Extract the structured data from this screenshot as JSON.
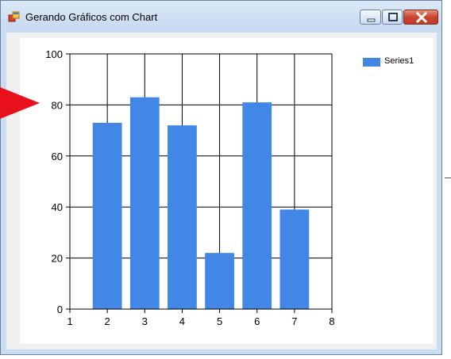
{
  "window": {
    "title": "Gerando Gráficos com Chart",
    "controls": {
      "minimize_icon": "minimize-icon",
      "maximize_icon": "maximize-icon",
      "close_icon": "close-icon"
    }
  },
  "colors": {
    "bar": "#4286e6",
    "close_button": "#c94530",
    "arrow": "#e8101a"
  },
  "chart_data": {
    "type": "bar",
    "x": [
      2,
      3,
      4,
      5,
      6,
      7
    ],
    "series": [
      {
        "name": "Series1",
        "values": [
          73,
          83,
          72,
          22,
          81,
          39
        ]
      }
    ],
    "xlim": [
      1,
      8
    ],
    "ylim": [
      0,
      100
    ],
    "xticks": [
      "1",
      "2",
      "3",
      "4",
      "5",
      "6",
      "7",
      "8"
    ],
    "yticks": [
      "0",
      "20",
      "40",
      "60",
      "80",
      "100"
    ],
    "grid": true,
    "legend_position": "top-right"
  }
}
